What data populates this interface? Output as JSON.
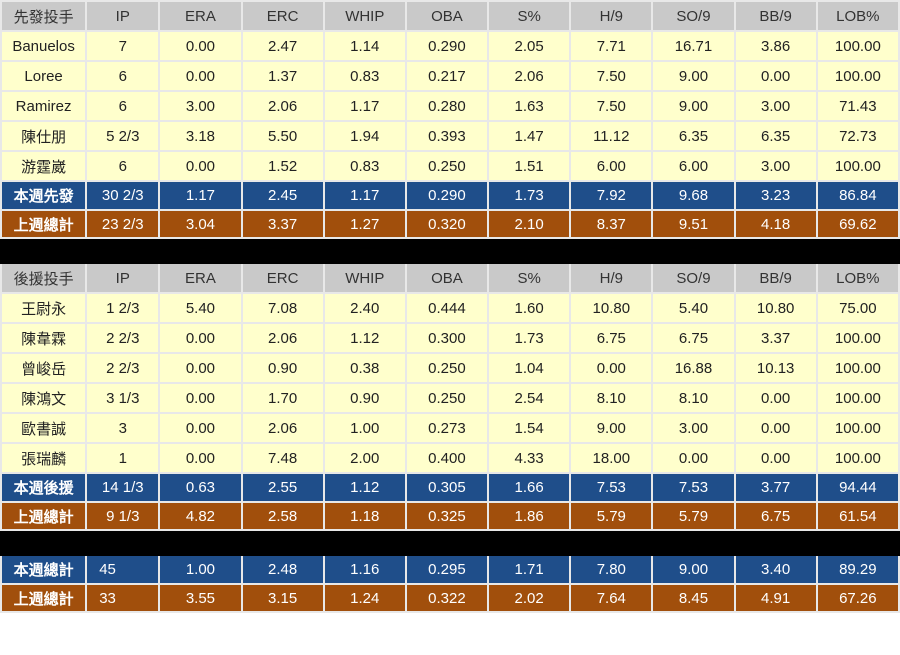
{
  "headers": [
    "IP",
    "ERA",
    "ERC",
    "WHIP",
    "OBA",
    "S%",
    "H/9",
    "SO/9",
    "BB/9",
    "LOB%"
  ],
  "starters": {
    "title": "先發投手",
    "rows": [
      [
        "Banuelos",
        "7",
        "0.00",
        "2.47",
        "1.14",
        "0.290",
        "2.05",
        "7.71",
        "16.71",
        "3.86",
        "100.00"
      ],
      [
        "Loree",
        "6",
        "0.00",
        "1.37",
        "0.83",
        "0.217",
        "2.06",
        "7.50",
        "9.00",
        "0.00",
        "100.00"
      ],
      [
        "Ramirez",
        "6",
        "3.00",
        "2.06",
        "1.17",
        "0.280",
        "1.63",
        "7.50",
        "9.00",
        "3.00",
        "71.43"
      ],
      [
        "陳仕朋",
        "5 2/3",
        "3.18",
        "5.50",
        "1.94",
        "0.393",
        "1.47",
        "11.12",
        "6.35",
        "6.35",
        "72.73"
      ],
      [
        "游霆崴",
        "6",
        "0.00",
        "1.52",
        "0.83",
        "0.250",
        "1.51",
        "6.00",
        "6.00",
        "3.00",
        "100.00"
      ]
    ],
    "this_week": [
      "本週先發",
      "30 2/3",
      "1.17",
      "2.45",
      "1.17",
      "0.290",
      "1.73",
      "7.92",
      "9.68",
      "3.23",
      "86.84"
    ],
    "last_week": [
      "上週總計",
      "23 2/3",
      "3.04",
      "3.37",
      "1.27",
      "0.320",
      "2.10",
      "8.37",
      "9.51",
      "4.18",
      "69.62"
    ]
  },
  "relievers": {
    "title": "後援投手",
    "rows": [
      [
        "王尉永",
        "1 2/3",
        "5.40",
        "7.08",
        "2.40",
        "0.444",
        "1.60",
        "10.80",
        "5.40",
        "10.80",
        "75.00"
      ],
      [
        "陳韋霖",
        "2 2/3",
        "0.00",
        "2.06",
        "1.12",
        "0.300",
        "1.73",
        "6.75",
        "6.75",
        "3.37",
        "100.00"
      ],
      [
        "曾峻岳",
        "2 2/3",
        "0.00",
        "0.90",
        "0.38",
        "0.250",
        "1.04",
        "0.00",
        "16.88",
        "10.13",
        "100.00"
      ],
      [
        "陳鴻文",
        "3 1/3",
        "0.00",
        "1.70",
        "0.90",
        "0.250",
        "2.54",
        "8.10",
        "8.10",
        "0.00",
        "100.00"
      ],
      [
        "歐書誠",
        "3",
        "0.00",
        "2.06",
        "1.00",
        "0.273",
        "1.54",
        "9.00",
        "3.00",
        "0.00",
        "100.00"
      ],
      [
        "張瑞麟",
        "1",
        "0.00",
        "7.48",
        "2.00",
        "0.400",
        "4.33",
        "18.00",
        "0.00",
        "0.00",
        "100.00"
      ]
    ],
    "this_week": [
      "本週後援",
      "14 1/3",
      "0.63",
      "2.55",
      "1.12",
      "0.305",
      "1.66",
      "7.53",
      "7.53",
      "3.77",
      "94.44"
    ],
    "last_week": [
      "上週總計",
      "9 1/3",
      "4.82",
      "2.58",
      "1.18",
      "0.325",
      "1.86",
      "5.79",
      "5.79",
      "6.75",
      "61.54"
    ]
  },
  "totals": {
    "this_week": [
      "本週總計",
      "45",
      "1.00",
      "2.48",
      "1.16",
      "0.295",
      "1.71",
      "7.80",
      "9.00",
      "3.40",
      "89.29"
    ],
    "last_week": [
      "上週總計",
      "33",
      "3.55",
      "3.15",
      "1.24",
      "0.322",
      "2.02",
      "7.64",
      "8.45",
      "4.91",
      "67.26"
    ]
  },
  "colors": {
    "header": "#c9c9c9",
    "row": "#ffffcc",
    "this_week": "#1f4e8a",
    "last_week": "#a14f0c",
    "separator": "#000000"
  }
}
